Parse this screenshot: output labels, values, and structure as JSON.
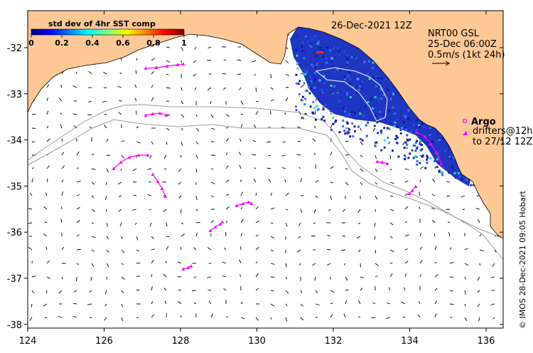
{
  "title": {
    "date": "26-Dec-2021 12Z",
    "product": "NRT00 GSL",
    "product_time": "25-Dec 06:00Z",
    "scale_text": "0.5m/s (1kt 24h)"
  },
  "colorbar": {
    "label": "std dev of 4hr SST comp",
    "ticks": [
      "0",
      "0.2",
      "0.4",
      "0.6",
      "0.8",
      "1"
    ],
    "stops": [
      "#00007f",
      "#0000ff",
      "#0080ff",
      "#00ffff",
      "#80ff80",
      "#ffff00",
      "#ff8000",
      "#ff0000",
      "#7f0000"
    ]
  },
  "legend": {
    "argo_label": "Argo",
    "drifters_line1": "drifters@12h",
    "drifters_line2": "to 27/12 12Z"
  },
  "credit": "© IMOS 28-Dec-2021 09:05 Hobart",
  "axes": {
    "x_ticks": [
      "124",
      "126",
      "128",
      "130",
      "132",
      "134",
      "136"
    ],
    "y_ticks": [
      "-32",
      "-33",
      "-34",
      "-35",
      "-36",
      "-37",
      "-38"
    ]
  },
  "colors": {
    "land": "#fdc895",
    "sst_dark": "#1a2fbf",
    "drifter": "#ff00ff",
    "contour": "#a0a0a0"
  }
}
